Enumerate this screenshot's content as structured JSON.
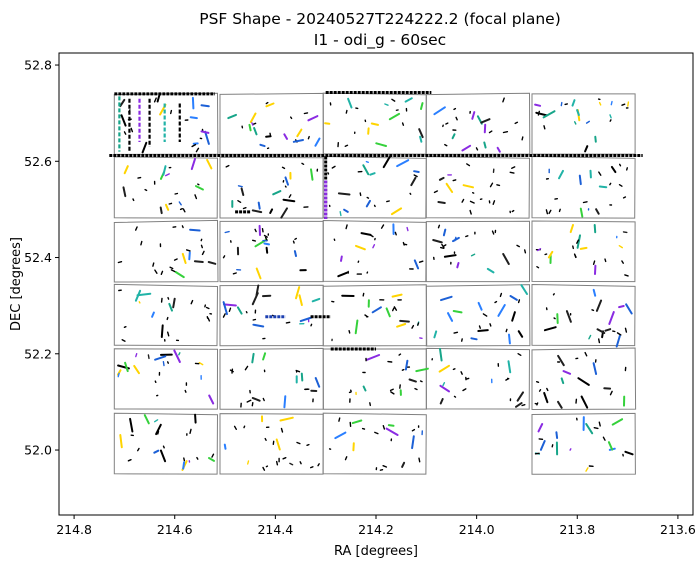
{
  "chart_data": {
    "type": "scatter",
    "title": "PSF Shape - 20240527T224222.2 (focal plane)",
    "subtitle": "I1 - odi_g - 60sec",
    "xlabel": "RA [degrees]",
    "ylabel": "DEC [degrees]",
    "xlim": [
      214.83,
      213.57
    ],
    "ylim": [
      51.865,
      52.825
    ],
    "x_inverted": true,
    "x_ticks": [
      214.8,
      214.6,
      214.4,
      214.2,
      214.0,
      213.8,
      213.6
    ],
    "x_tick_labels": [
      "214.8",
      "214.6",
      "214.4",
      "214.2",
      "214.0",
      "213.8",
      "213.6"
    ],
    "y_ticks": [
      52.0,
      52.2,
      52.4,
      52.6,
      52.8
    ],
    "y_tick_labels": [
      "52.0",
      "52.2",
      "52.4",
      "52.6",
      "52.8"
    ],
    "grid": false,
    "legend": "none",
    "ota_outline_color": "#808080",
    "ota_columns": [
      {
        "ra_left": 214.72,
        "ra_right": 214.515
      },
      {
        "ra_left": 214.51,
        "ra_right": 214.305
      },
      {
        "ra_left": 214.305,
        "ra_right": 214.1
      },
      {
        "ra_left": 214.1,
        "ra_right": 213.895
      },
      {
        "ra_left": 213.89,
        "ra_right": 213.685
      }
    ],
    "ota_rows": [
      {
        "dec_top": 52.74,
        "dec_bottom": 52.615
      },
      {
        "dec_top": 52.608,
        "dec_bottom": 52.482
      },
      {
        "dec_top": 52.475,
        "dec_bottom": 52.35
      },
      {
        "dec_top": 52.342,
        "dec_bottom": 52.217
      },
      {
        "dec_top": 52.21,
        "dec_bottom": 52.085
      },
      {
        "dec_top": 52.075,
        "dec_bottom": 51.95
      }
    ],
    "missing_otas": [
      [
        5,
        3
      ]
    ],
    "whisker_colors": [
      "#000000",
      "#1f1f1f",
      "#1c60d6",
      "#21b3a7",
      "#35d13b",
      "#8a2be2",
      "#2a7fff",
      "#17a589",
      "#ffd400"
    ],
    "dense_features": [
      {
        "ra1": 214.73,
        "dec1": 52.612,
        "ra2": 213.67,
        "dec2": 52.612,
        "color": "#000000"
      },
      {
        "ra1": 214.3,
        "dec1": 52.61,
        "ra2": 214.3,
        "dec2": 52.48,
        "color": "#000000"
      },
      {
        "ra1": 214.3,
        "dec1": 52.56,
        "ra2": 214.3,
        "dec2": 52.48,
        "color": "#8a2be2"
      },
      {
        "ra1": 214.72,
        "dec1": 52.74,
        "ra2": 214.52,
        "dec2": 52.74,
        "color": "#000000"
      },
      {
        "ra1": 214.3,
        "dec1": 52.743,
        "ra2": 214.09,
        "dec2": 52.743,
        "color": "#000000"
      },
      {
        "ra1": 214.42,
        "dec1": 52.277,
        "ra2": 214.38,
        "dec2": 52.277,
        "color": "#1c3fb0"
      },
      {
        "ra1": 214.33,
        "dec1": 52.277,
        "ra2": 214.29,
        "dec2": 52.277,
        "color": "#000000"
      },
      {
        "ra1": 214.48,
        "dec1": 52.495,
        "ra2": 214.45,
        "dec2": 52.495,
        "color": "#000000"
      },
      {
        "ra1": 214.29,
        "dec1": 52.21,
        "ra2": 214.2,
        "dec2": 52.21,
        "color": "#000000"
      }
    ],
    "dense_columns_ota_1_1": [
      {
        "ra": 214.71,
        "dec1": 52.735,
        "dec2": 52.62,
        "color": "#17a589"
      },
      {
        "ra": 214.69,
        "dec1": 52.73,
        "dec2": 52.62,
        "color": "#000000"
      },
      {
        "ra": 214.67,
        "dec1": 52.73,
        "dec2": 52.64,
        "color": "#8a2be2"
      },
      {
        "ra": 214.65,
        "dec1": 52.73,
        "dec2": 52.63,
        "color": "#000000"
      },
      {
        "ra": 214.62,
        "dec1": 52.72,
        "dec2": 52.64,
        "color": "#21b3a7"
      },
      {
        "ra": 214.59,
        "dec1": 52.72,
        "dec2": 52.64,
        "color": "#000000"
      }
    ],
    "whisker_count": 640
  }
}
